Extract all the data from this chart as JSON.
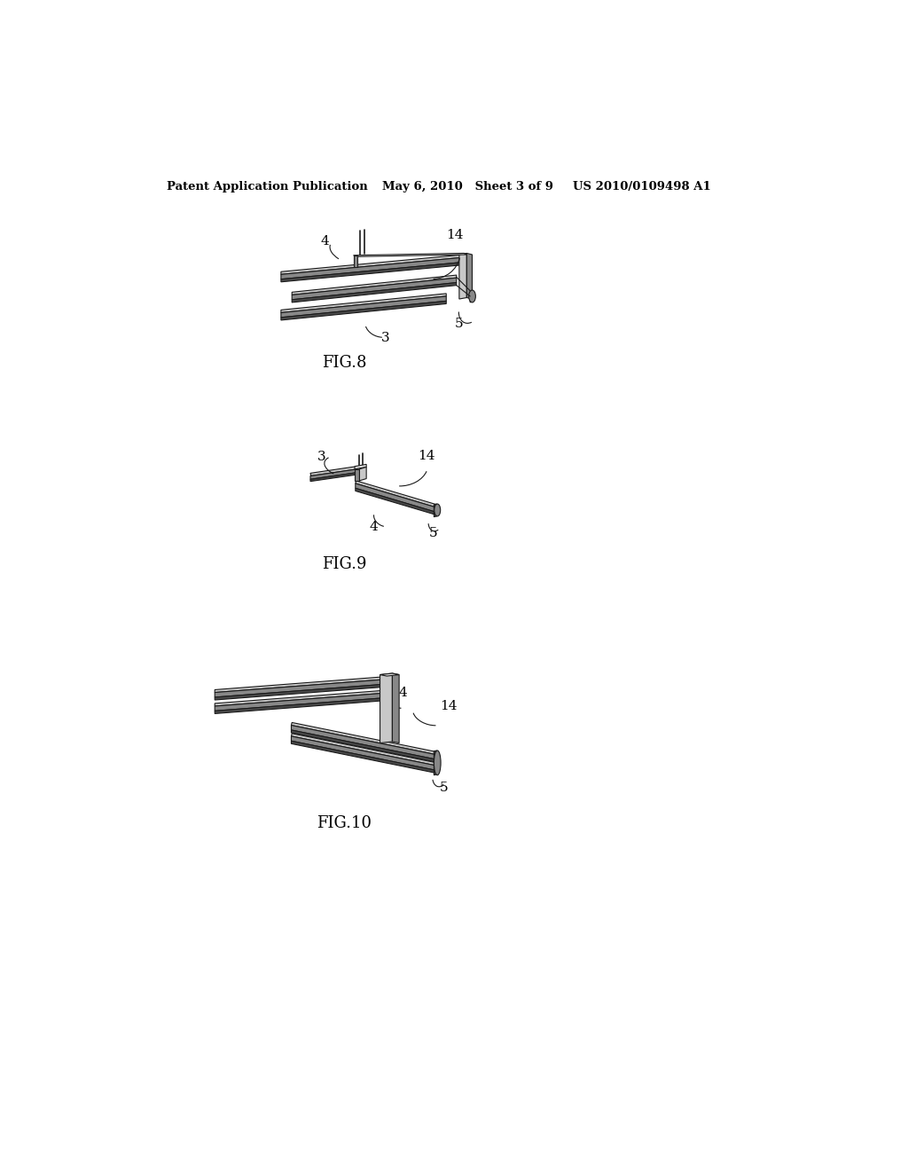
{
  "bg_color": "#ffffff",
  "header_text1": "Patent Application Publication",
  "header_text2": "May 6, 2010   Sheet 3 of 9",
  "header_text3": "US 2010/0109498 A1",
  "fig8_label": "FIG.8",
  "fig9_label": "FIG.9",
  "fig10_label": "FIG.10",
  "line_color": "#1a1a1a",
  "dark_fill": "#4a4a4a",
  "mid_fill": "#888888",
  "light_fill": "#c8c8c8",
  "lighter_fill": "#e0e0e0"
}
